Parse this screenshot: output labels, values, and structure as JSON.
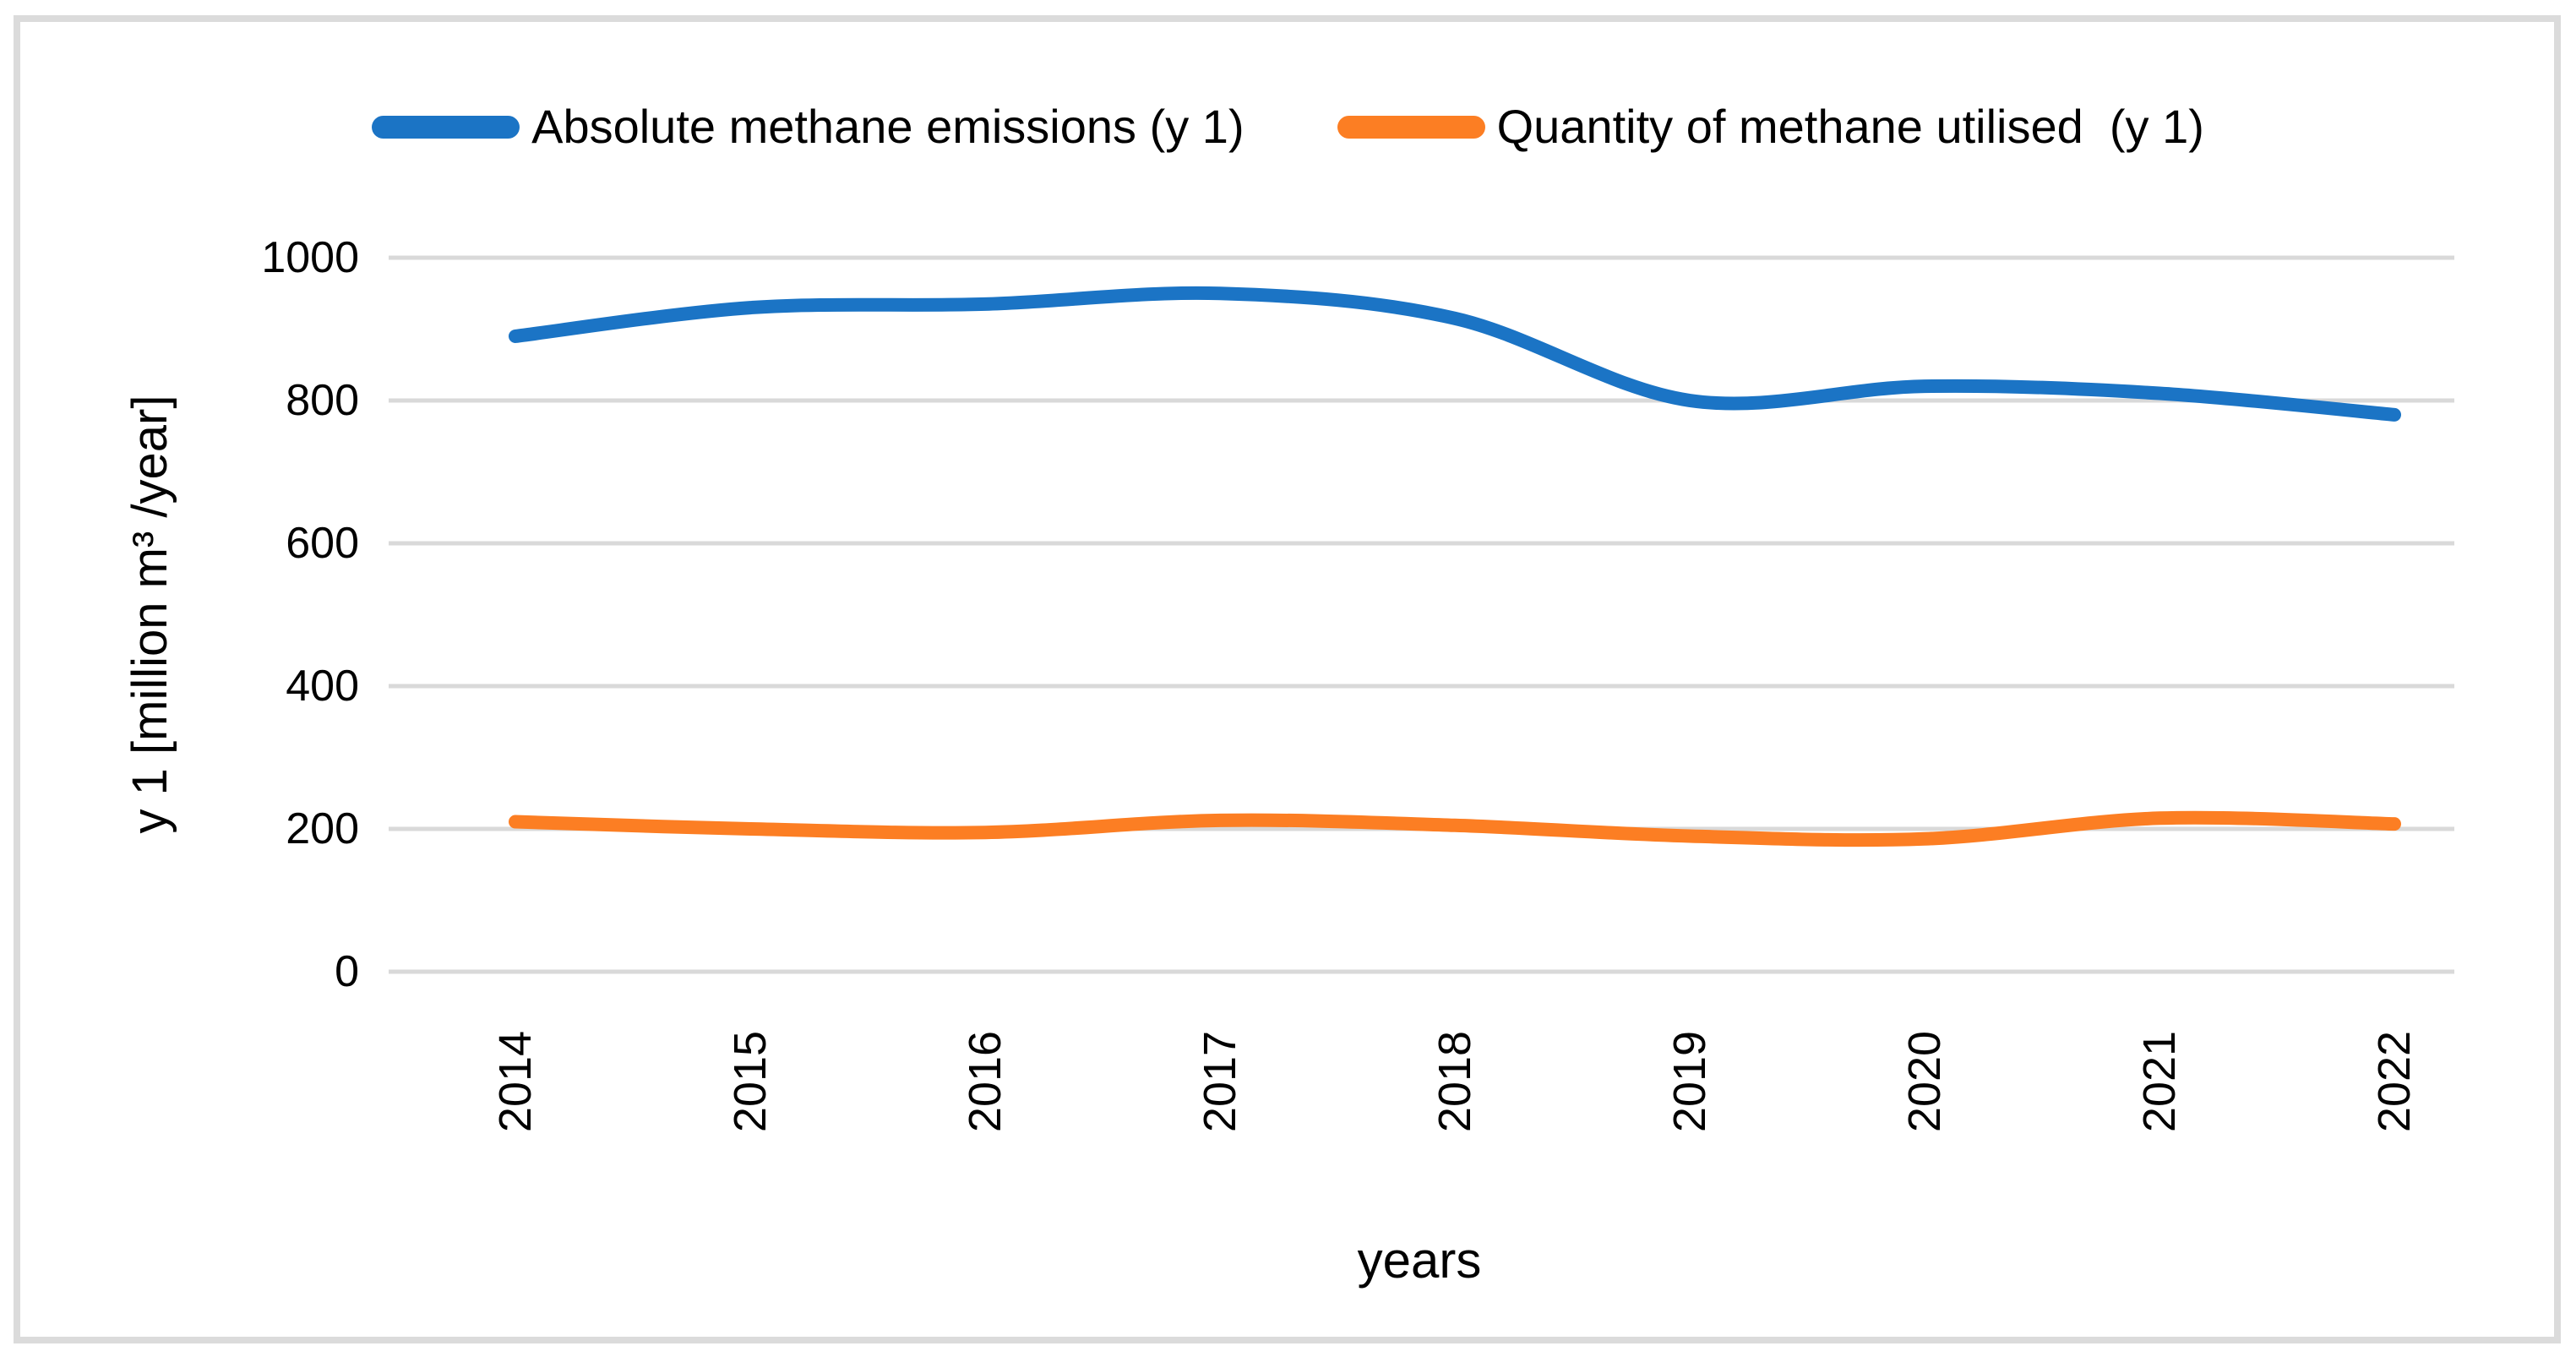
{
  "chart_data": {
    "type": "line",
    "categories": [
      "2014",
      "2015",
      "2016",
      "2017",
      "2018",
      "2019",
      "2020",
      "2021",
      "2022"
    ],
    "series": [
      {
        "name": "Absolute methane emissions (y 1)",
        "color": "#1B74C5",
        "values": [
          890,
          930,
          935,
          950,
          915,
          800,
          820,
          810,
          780
        ]
      },
      {
        "name": "Quantity of methane utilised  (y 1)",
        "color": "#FC7E23",
        "values": [
          210,
          200,
          195,
          212,
          205,
          190,
          186,
          215,
          207
        ]
      }
    ],
    "title": "",
    "xlabel": "years",
    "ylabel": "y 1 [million m³ /year]",
    "ylim": [
      0,
      1000
    ],
    "yticks": [
      0,
      200,
      400,
      600,
      800,
      1000
    ],
    "grid": "horizontal",
    "gridline_color": "#D9D9D9",
    "frame_color": "#DBDBDB",
    "legend_position": "top",
    "line_style": "smooth"
  }
}
